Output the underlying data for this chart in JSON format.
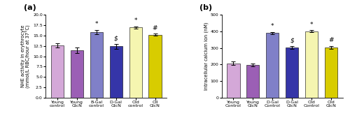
{
  "panel_a": {
    "categories": [
      "Young\ncontrol",
      "Young\nGlcN",
      "B-Gal\ncontrol",
      "D-Gal\nGlcN",
      "Old\ncontrol",
      "OlI\nGlcN"
    ],
    "values": [
      12.6,
      11.5,
      15.9,
      12.4,
      17.0,
      15.2
    ],
    "errors": [
      0.5,
      0.7,
      0.5,
      0.6,
      0.25,
      0.25
    ],
    "colors": [
      "#d4a8d8",
      "#9b5fb5",
      "#8080c8",
      "#3535a8",
      "#f5f5b0",
      "#d8cc00"
    ],
    "annotations": [
      "",
      "",
      "*",
      "$",
      "*",
      "#"
    ],
    "ylabel": "NHE activity in erythrocyte\n(mmol/L RBC/hour at 37°C)",
    "ylim": [
      0,
      20.0
    ],
    "yticks": [
      0.0,
      2.5,
      5.0,
      7.5,
      10.0,
      12.5,
      15.0,
      17.5,
      20.0
    ],
    "label": "(a)"
  },
  "panel_b": {
    "categories": [
      "Young\nControl",
      "Young\nGlcN",
      "D-Gal\nControl",
      "D-Gal\nGlcN",
      "Old\nControl",
      "Old\nGlcN"
    ],
    "values": [
      207,
      198,
      390,
      303,
      402,
      304
    ],
    "errors": [
      10,
      8,
      7,
      10,
      5,
      8
    ],
    "colors": [
      "#d4a8d8",
      "#9b5fb5",
      "#8080c8",
      "#3535a8",
      "#f5f5b0",
      "#d8cc00"
    ],
    "annotations": [
      "",
      "",
      "*",
      "$",
      "*",
      "#"
    ],
    "ylabel": "Intracellular calcium ion (nM)",
    "ylim": [
      0,
      500
    ],
    "yticks": [
      0,
      100,
      200,
      300,
      400,
      500
    ],
    "label": "(b)"
  },
  "annotation_fontsize": 6.5,
  "label_fontsize": 4.8,
  "tick_fontsize": 4.5,
  "panel_label_fontsize": 8,
  "bar_width": 0.65,
  "figure_bg": "#ffffff",
  "capsize": 2
}
